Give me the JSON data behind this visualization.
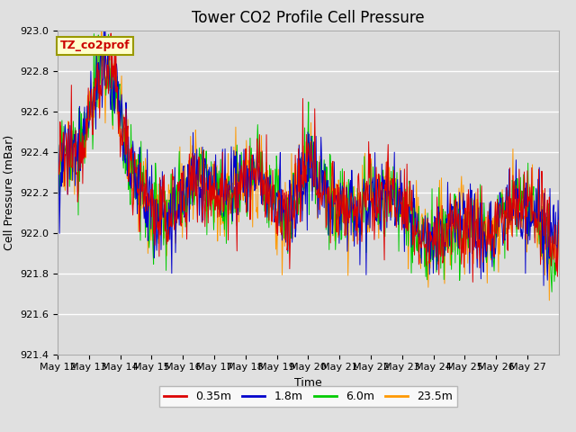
{
  "title": "Tower CO2 Profile Cell Pressure",
  "xlabel": "Time",
  "ylabel": "Cell Pressure (mBar)",
  "ylim": [
    921.4,
    923.0
  ],
  "xlim_days": 16,
  "xtick_labels": [
    "May 12",
    "May 13",
    "May 14",
    "May 15",
    "May 16",
    "May 17",
    "May 18",
    "May 19",
    "May 20",
    "May 21",
    "May 22",
    "May 23",
    "May 24",
    "May 25",
    "May 26",
    "May 27"
  ],
  "ytick_values": [
    921.4,
    921.6,
    921.8,
    922.0,
    922.2,
    922.4,
    922.6,
    922.8,
    923.0
  ],
  "series_labels": [
    "0.35m",
    "1.8m",
    "6.0m",
    "23.5m"
  ],
  "series_colors": [
    "#dd0000",
    "#0000cc",
    "#00cc00",
    "#ff9900"
  ],
  "background_color": "#e0e0e0",
  "plot_bg_color": "#dcdcdc",
  "annotation_text": "TZ_co2prof",
  "annotation_color": "#cc0000",
  "annotation_bg": "#ffffcc",
  "annotation_edge": "#999900",
  "title_fontsize": 12,
  "axis_fontsize": 9,
  "tick_fontsize": 8,
  "legend_fontsize": 9,
  "linewidth": 0.7
}
